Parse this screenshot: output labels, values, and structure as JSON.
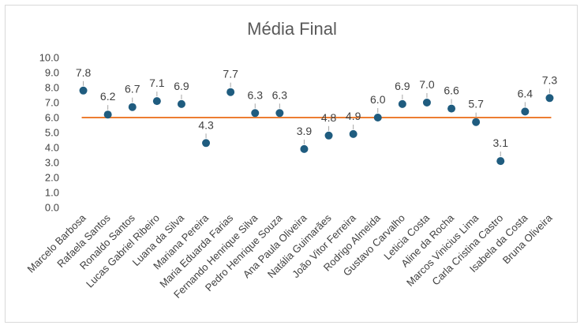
{
  "chart_data": {
    "type": "scatter",
    "title": "Média Final",
    "categories": [
      "Marcelo Barbosa",
      "Rafaela Santos",
      "Ronaldo Santos",
      "Lucas Gabriel Ribeiro",
      "Luana da Silva",
      "Mariana Pereira",
      "Maria Eduarda Farias",
      "Fernando Henrique Silva",
      "Pedro Henrique Souza",
      "Ana Paula Oliveira",
      "Natália Guimarães",
      "João Vitor Ferreira",
      "Rodrigo Almeida",
      "Gustavo Carvalho",
      "Leticia Costa",
      "Aline da Rocha",
      "Marcos Vinicius Lima",
      "Carla Cristina Castro",
      "Isabela da Costa",
      "Bruna Oliveira"
    ],
    "series": [
      {
        "values": [
          7.8,
          6.2,
          6.7,
          7.1,
          6.9,
          4.3,
          7.7,
          6.3,
          6.3,
          3.9,
          4.8,
          4.9,
          6.0,
          6.9,
          7.0,
          6.6,
          5.7,
          3.1,
          6.4,
          7.3
        ],
        "color": "#1f5c7f"
      }
    ],
    "reference_line": {
      "value": 6.0,
      "color": "#ed7d31"
    },
    "ylim": [
      0,
      10
    ],
    "yticks": [
      "0.0",
      "1.0",
      "2.0",
      "3.0",
      "4.0",
      "5.0",
      "6.0",
      "7.0",
      "8.0",
      "9.0",
      "10.0"
    ],
    "grid": false,
    "data_labels": true,
    "xlabel": "",
    "ylabel": ""
  }
}
